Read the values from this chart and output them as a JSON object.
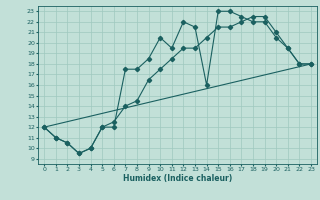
{
  "xlabel": "Humidex (Indice chaleur)",
  "xlim": [
    -0.5,
    23.5
  ],
  "ylim": [
    8.5,
    23.5
  ],
  "xticks": [
    0,
    1,
    2,
    3,
    4,
    5,
    6,
    7,
    8,
    9,
    10,
    11,
    12,
    13,
    14,
    15,
    16,
    17,
    18,
    19,
    20,
    21,
    22,
    23
  ],
  "yticks": [
    9,
    10,
    11,
    12,
    13,
    14,
    15,
    16,
    17,
    18,
    19,
    20,
    21,
    22,
    23
  ],
  "bg_color": "#c2e0d8",
  "grid_color": "#9fc8bf",
  "line_color": "#1a6060",
  "line1_x": [
    0,
    1,
    2,
    3,
    4,
    5,
    6,
    7,
    8,
    9,
    10,
    11,
    12,
    13,
    14,
    15,
    16,
    17,
    18,
    19,
    20,
    21,
    22,
    23
  ],
  "line1_y": [
    12,
    11,
    10.5,
    9.5,
    10,
    12,
    12,
    17.5,
    17.5,
    18.5,
    20.5,
    19.5,
    22,
    21.5,
    16,
    23,
    23,
    22.5,
    22,
    22,
    20.5,
    19.5,
    18,
    18
  ],
  "line2_x": [
    0,
    1,
    2,
    3,
    4,
    5,
    6,
    7,
    8,
    9,
    10,
    11,
    12,
    13,
    14,
    15,
    16,
    17,
    18,
    19,
    20,
    21,
    22,
    23
  ],
  "line2_y": [
    12,
    11,
    10.5,
    9.5,
    10,
    12,
    12.5,
    14,
    14.5,
    16.5,
    17.5,
    18.5,
    19.5,
    19.5,
    20.5,
    21.5,
    21.5,
    22,
    22.5,
    22.5,
    21,
    19.5,
    18,
    18
  ],
  "line3_x": [
    0,
    23
  ],
  "line3_y": [
    12,
    18
  ]
}
